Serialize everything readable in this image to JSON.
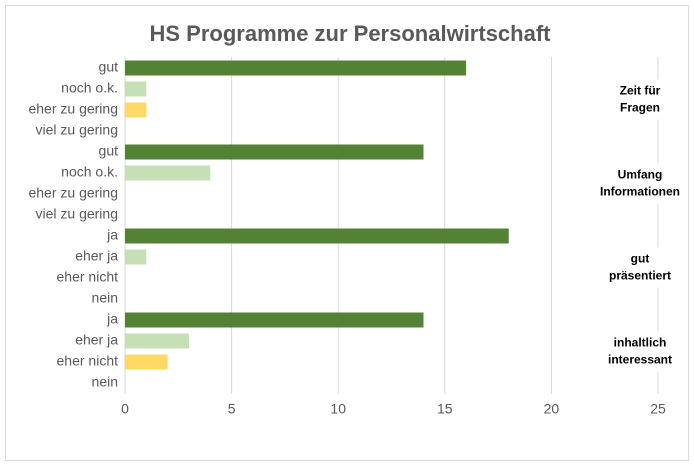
{
  "chart_data": {
    "type": "hbar",
    "title": "HS Programme zur Personalwirtschaft",
    "categories": [
      "gut",
      "noch o.k.",
      "eher zu gering",
      "viel zu gering",
      "gut",
      "noch o.k.",
      "eher zu gering",
      "viel zu gering",
      "ja",
      "eher ja",
      "eher nicht",
      "nein",
      "ja",
      "eher ja",
      "eher nicht",
      "nein"
    ],
    "values": [
      16,
      1,
      1,
      0,
      14,
      4,
      0,
      0,
      18,
      1,
      0,
      0,
      14,
      3,
      2,
      0
    ],
    "colors": [
      "#548235",
      "#c5e0b4",
      "#ffd966",
      "#ffd966",
      "#548235",
      "#c5e0b4",
      "#ffd966",
      "#ffd966",
      "#548235",
      "#c5e0b4",
      "#ffd966",
      "#ffd966",
      "#548235",
      "#c5e0b4",
      "#ffd966",
      "#ffd966"
    ],
    "groups": [
      [
        "Zeit für",
        "Fragen"
      ],
      [
        "Umfang",
        "Informationen"
      ],
      [
        "gut",
        "präsentiert"
      ],
      [
        "inhaltlich",
        "interessant"
      ]
    ],
    "xlim": [
      0,
      25
    ],
    "xticks": [
      0,
      5,
      10,
      15,
      20,
      25
    ],
    "grid": true
  }
}
